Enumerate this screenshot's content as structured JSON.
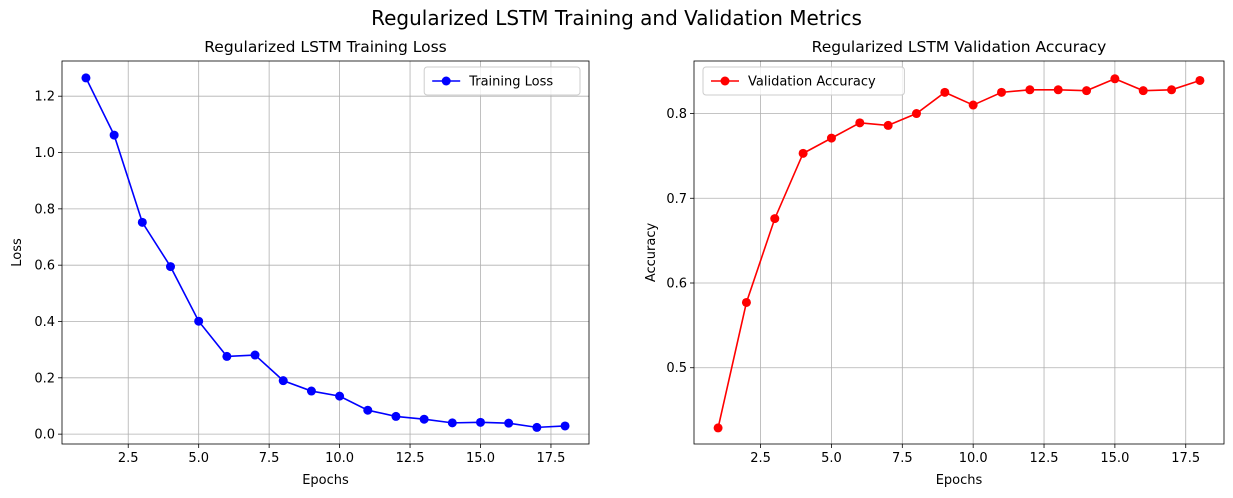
{
  "figure": {
    "suptitle": "Regularized LSTM Training and Validation Metrics"
  },
  "chart_data": [
    {
      "type": "line",
      "title": "Regularized LSTM Training Loss",
      "xlabel": "Epochs",
      "ylabel": "Loss",
      "xlim": [
        0.15,
        18.85
      ],
      "ylim": [
        -0.035,
        1.325
      ],
      "xticks": [
        2.5,
        5.0,
        7.5,
        10.0,
        12.5,
        15.0,
        17.5
      ],
      "xtick_labels": [
        "2.5",
        "5.0",
        "7.5",
        "10.0",
        "12.5",
        "15.0",
        "17.5"
      ],
      "yticks": [
        0.0,
        0.2,
        0.4,
        0.6,
        0.8,
        1.0,
        1.2
      ],
      "ytick_labels": [
        "0.0",
        "0.2",
        "0.4",
        "0.6",
        "0.8",
        "1.0",
        "1.2"
      ],
      "grid": true,
      "legend_position": "top-right",
      "series": [
        {
          "name": "Training Loss",
          "color": "#0000ff",
          "marker": "circle",
          "x": [
            1,
            2,
            3,
            4,
            5,
            6,
            7,
            8,
            9,
            10,
            11,
            12,
            13,
            14,
            15,
            16,
            17,
            18
          ],
          "y": [
            1.265,
            1.062,
            0.752,
            0.595,
            0.401,
            0.276,
            0.281,
            0.19,
            0.153,
            0.135,
            0.085,
            0.063,
            0.053,
            0.04,
            0.042,
            0.039,
            0.024,
            0.029
          ]
        }
      ]
    },
    {
      "type": "line",
      "title": "Regularized LSTM Validation Accuracy",
      "xlabel": "Epochs",
      "ylabel": "Accuracy",
      "xlim": [
        0.15,
        18.85
      ],
      "ylim": [
        0.41,
        0.862
      ],
      "xticks": [
        2.5,
        5.0,
        7.5,
        10.0,
        12.5,
        15.0,
        17.5
      ],
      "xtick_labels": [
        "2.5",
        "5.0",
        "7.5",
        "10.0",
        "12.5",
        "15.0",
        "17.5"
      ],
      "yticks": [
        0.5,
        0.6,
        0.7,
        0.8
      ],
      "ytick_labels": [
        "0.5",
        "0.6",
        "0.7",
        "0.8"
      ],
      "grid": true,
      "legend_position": "top-left",
      "series": [
        {
          "name": "Validation Accuracy",
          "color": "#ff0000",
          "marker": "circle",
          "x": [
            1,
            2,
            3,
            4,
            5,
            6,
            7,
            8,
            9,
            10,
            11,
            12,
            13,
            14,
            15,
            16,
            17,
            18
          ],
          "y": [
            0.429,
            0.577,
            0.676,
            0.753,
            0.771,
            0.789,
            0.786,
            0.8,
            0.825,
            0.81,
            0.825,
            0.828,
            0.828,
            0.827,
            0.841,
            0.827,
            0.828,
            0.839
          ]
        }
      ]
    }
  ]
}
